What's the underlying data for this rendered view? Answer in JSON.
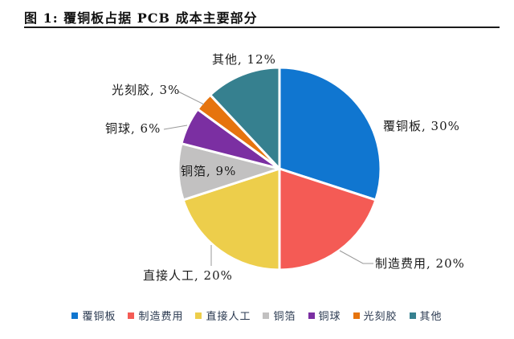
{
  "header": {
    "title": "图 1:  覆铜板占据 PCB 成本主要部分"
  },
  "chart_data": {
    "type": "pie",
    "title": "图 1: 覆铜板占据 PCB 成本主要部分",
    "categories": [
      "覆铜板",
      "制造费用",
      "直接人工",
      "铜箔",
      "铜球",
      "光刻胶",
      "其他"
    ],
    "values": [
      30,
      20,
      20,
      9,
      6,
      3,
      12
    ],
    "unit": "%",
    "colors": [
      "#1076D0",
      "#F45B55",
      "#EDCE4B",
      "#C2C1C1",
      "#7B2FA2",
      "#E6740E",
      "#36808F"
    ],
    "labels": [
      "覆铜板,  30%",
      "制造费用,  20%",
      "直接人工,  20%",
      "铜箔,  9%",
      "铜球,  6%",
      "光刻胶,  3%",
      "其他,  12%"
    ],
    "legend_entries": [
      "覆铜板",
      "制造费用",
      "直接人工",
      "铜箔",
      "铜球",
      "光刻胶",
      "其他"
    ],
    "start_angle_deg": 0,
    "direction": "clockwise",
    "legend_position": "bottom",
    "slice_border_color": "#ffffff",
    "leader_line_color": "#9a9a9a",
    "label_color": "#1a1a1a",
    "legend_text_color": "#2a3950"
  }
}
